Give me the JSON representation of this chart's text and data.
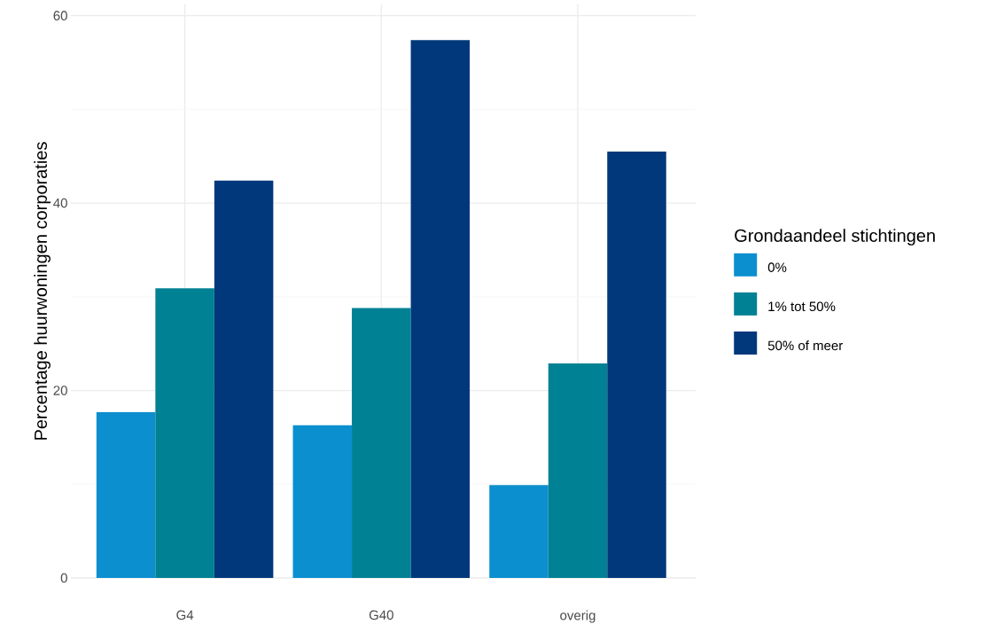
{
  "chart_data": {
    "type": "bar",
    "ylabel": "Percentage huurwoningen corporaties",
    "legend_title": "Grondaandeel stichtingen",
    "categories": [
      "G4",
      "G40",
      "overig"
    ],
    "series": [
      {
        "name": "0%",
        "color": "#0b8fcf",
        "values": [
          17.7,
          16.3,
          9.9
        ]
      },
      {
        "name": "1% tot 50%",
        "color": "#008194",
        "values": [
          30.9,
          28.8,
          22.9
        ]
      },
      {
        "name": "50% of meer",
        "color": "#00387b",
        "values": [
          42.4,
          57.4,
          45.5
        ]
      }
    ],
    "ylim": [
      0,
      61.2
    ],
    "yticks": [
      0,
      20,
      40,
      60
    ],
    "grid": true,
    "legend": "right"
  }
}
